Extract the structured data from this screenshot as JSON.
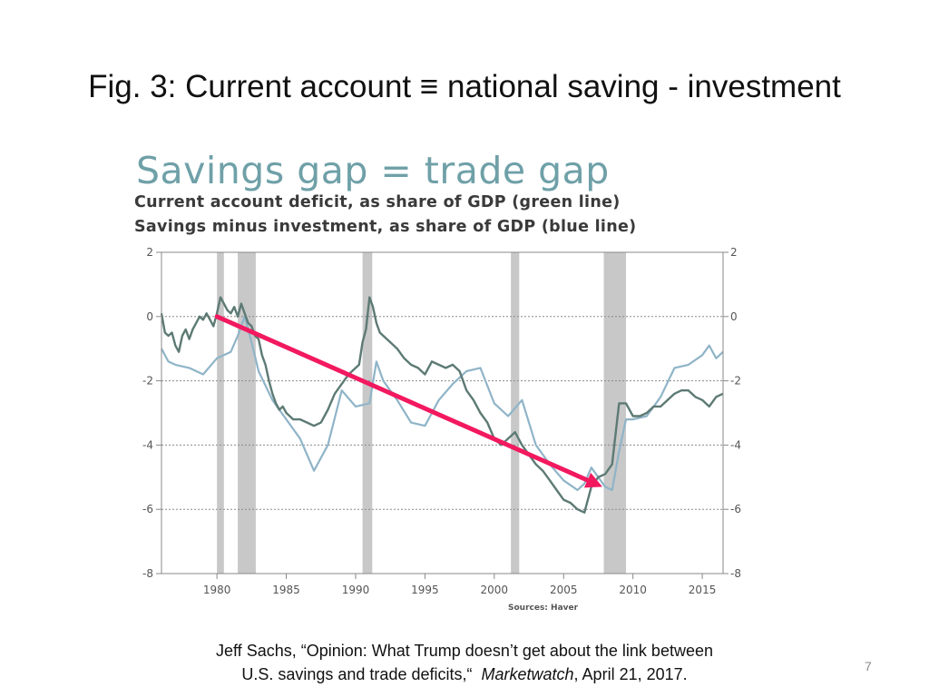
{
  "slide": {
    "title": "Fig. 3: Current account ≡ national saving - investment",
    "page_number": "7",
    "citation_line1": "Jeff Sachs, “Opinion: What Trump doesn’t get about the link between",
    "citation_line2_pre": "U.S. savings and trade deficits,“ ",
    "citation_source": "Marketwatch",
    "citation_line2_post": ", April 21, 2017."
  },
  "chart_data": {
    "type": "line",
    "title": "Savings gap = trade gap",
    "subtitle_lines": [
      "Current account deficit, as share of GDP (green line)",
      "Savings minus investment, as share of GDP (blue line)"
    ],
    "source": "Sources: Haver",
    "xlim": [
      1976,
      2016.5
    ],
    "ylim": [
      -8,
      2
    ],
    "x_ticks": [
      1980,
      1985,
      1990,
      1995,
      2000,
      2005,
      2010,
      2015
    ],
    "y_ticks": [
      2,
      0,
      -2,
      -4,
      -6,
      -8
    ],
    "grid": true,
    "recessions": [
      [
        1980.0,
        1980.5
      ],
      [
        1981.5,
        1982.8
      ],
      [
        1990.5,
        1991.2
      ],
      [
        2001.2,
        2001.8
      ],
      [
        2007.9,
        2009.5
      ]
    ],
    "series": [
      {
        "color": "#5d7a74",
        "points": [
          [
            1976,
            0.1
          ],
          [
            1976.25,
            -0.5
          ],
          [
            1976.5,
            -0.6
          ],
          [
            1976.75,
            -0.5
          ],
          [
            1977,
            -0.9
          ],
          [
            1977.25,
            -1.1
          ],
          [
            1977.5,
            -0.6
          ],
          [
            1977.75,
            -0.4
          ],
          [
            1978,
            -0.7
          ],
          [
            1978.25,
            -0.4
          ],
          [
            1978.5,
            -0.2
          ],
          [
            1978.75,
            0.0
          ],
          [
            1979,
            -0.1
          ],
          [
            1979.25,
            0.1
          ],
          [
            1979.5,
            -0.1
          ],
          [
            1979.75,
            -0.3
          ],
          [
            1980,
            0.1
          ],
          [
            1980.25,
            0.6
          ],
          [
            1980.5,
            0.4
          ],
          [
            1980.75,
            0.2
          ],
          [
            1981,
            0.1
          ],
          [
            1981.25,
            0.3
          ],
          [
            1981.5,
            0.0
          ],
          [
            1981.75,
            0.4
          ],
          [
            1982,
            0.1
          ],
          [
            1982.25,
            -0.2
          ],
          [
            1982.5,
            -0.3
          ],
          [
            1982.75,
            -0.6
          ],
          [
            1983,
            -0.7
          ],
          [
            1983.25,
            -1.2
          ],
          [
            1983.5,
            -1.5
          ],
          [
            1983.75,
            -2.0
          ],
          [
            1984,
            -2.4
          ],
          [
            1984.25,
            -2.7
          ],
          [
            1984.5,
            -2.9
          ],
          [
            1984.75,
            -2.8
          ],
          [
            1985,
            -3.0
          ],
          [
            1985.5,
            -3.2
          ],
          [
            1986,
            -3.2
          ],
          [
            1986.5,
            -3.3
          ],
          [
            1987,
            -3.4
          ],
          [
            1987.5,
            -3.3
          ],
          [
            1988,
            -2.9
          ],
          [
            1988.5,
            -2.4
          ],
          [
            1989,
            -2.1
          ],
          [
            1989.5,
            -1.8
          ],
          [
            1990,
            -1.6
          ],
          [
            1990.25,
            -1.5
          ],
          [
            1990.5,
            -0.8
          ],
          [
            1990.75,
            -0.4
          ],
          [
            1991,
            0.6
          ],
          [
            1991.25,
            0.3
          ],
          [
            1991.5,
            -0.2
          ],
          [
            1991.75,
            -0.5
          ],
          [
            1992,
            -0.6
          ],
          [
            1992.5,
            -0.8
          ],
          [
            1993,
            -1.0
          ],
          [
            1993.5,
            -1.3
          ],
          [
            1994,
            -1.5
          ],
          [
            1994.5,
            -1.6
          ],
          [
            1995,
            -1.8
          ],
          [
            1995.5,
            -1.4
          ],
          [
            1996,
            -1.5
          ],
          [
            1996.5,
            -1.6
          ],
          [
            1997,
            -1.5
          ],
          [
            1997.5,
            -1.7
          ],
          [
            1998,
            -2.3
          ],
          [
            1998.5,
            -2.6
          ],
          [
            1999,
            -3.0
          ],
          [
            1999.5,
            -3.3
          ],
          [
            2000,
            -3.8
          ],
          [
            2000.5,
            -4.0
          ],
          [
            2001,
            -3.8
          ],
          [
            2001.5,
            -3.6
          ],
          [
            2002,
            -4.0
          ],
          [
            2002.5,
            -4.3
          ],
          [
            2003,
            -4.6
          ],
          [
            2003.5,
            -4.8
          ],
          [
            2004,
            -5.1
          ],
          [
            2004.5,
            -5.4
          ],
          [
            2005,
            -5.7
          ],
          [
            2005.5,
            -5.8
          ],
          [
            2006,
            -6.0
          ],
          [
            2006.5,
            -6.1
          ],
          [
            2007,
            -5.3
          ],
          [
            2007.5,
            -5.0
          ],
          [
            2008,
            -4.9
          ],
          [
            2008.5,
            -4.6
          ],
          [
            2009,
            -2.7
          ],
          [
            2009.5,
            -2.7
          ],
          [
            2010,
            -3.1
          ],
          [
            2010.5,
            -3.1
          ],
          [
            2011,
            -3.0
          ],
          [
            2011.5,
            -2.8
          ],
          [
            2012,
            -2.8
          ],
          [
            2012.5,
            -2.6
          ],
          [
            2013,
            -2.4
          ],
          [
            2013.5,
            -2.3
          ],
          [
            2014,
            -2.3
          ],
          [
            2014.5,
            -2.5
          ],
          [
            2015,
            -2.6
          ],
          [
            2015.5,
            -2.8
          ],
          [
            2016,
            -2.5
          ],
          [
            2016.5,
            -2.4
          ]
        ]
      },
      {
        "color": "#8fb4c8",
        "points": [
          [
            1976,
            -1.0
          ],
          [
            1976.5,
            -1.4
          ],
          [
            1977,
            -1.5
          ],
          [
            1978,
            -1.6
          ],
          [
            1979,
            -1.8
          ],
          [
            1980,
            -1.3
          ],
          [
            1981,
            -1.1
          ],
          [
            1981.5,
            -0.6
          ],
          [
            1982,
            0.0
          ],
          [
            1982.5,
            -0.8
          ],
          [
            1983,
            -1.7
          ],
          [
            1984,
            -2.6
          ],
          [
            1985,
            -3.2
          ],
          [
            1986,
            -3.8
          ],
          [
            1987,
            -4.8
          ],
          [
            1988,
            -4.0
          ],
          [
            1989,
            -2.3
          ],
          [
            1990,
            -2.8
          ],
          [
            1991,
            -2.7
          ],
          [
            1991.5,
            -1.4
          ],
          [
            1992,
            -2.0
          ],
          [
            1993,
            -2.6
          ],
          [
            1994,
            -3.3
          ],
          [
            1995,
            -3.4
          ],
          [
            1996,
            -2.6
          ],
          [
            1997,
            -2.1
          ],
          [
            1998,
            -1.7
          ],
          [
            1999,
            -1.6
          ],
          [
            2000,
            -2.7
          ],
          [
            2001,
            -3.1
          ],
          [
            2002,
            -2.6
          ],
          [
            2003,
            -4.0
          ],
          [
            2004,
            -4.6
          ],
          [
            2005,
            -5.1
          ],
          [
            2006,
            -5.4
          ],
          [
            2006.5,
            -5.2
          ],
          [
            2007,
            -4.7
          ],
          [
            2008,
            -5.3
          ],
          [
            2008.5,
            -5.4
          ],
          [
            2009,
            -4.2
          ],
          [
            2009.5,
            -3.2
          ],
          [
            2010,
            -3.2
          ],
          [
            2011,
            -3.1
          ],
          [
            2012,
            -2.5
          ],
          [
            2013,
            -1.6
          ],
          [
            2014,
            -1.5
          ],
          [
            2015,
            -1.2
          ],
          [
            2015.5,
            -0.9
          ],
          [
            2016,
            -1.3
          ],
          [
            2016.5,
            -1.1
          ]
        ]
      }
    ],
    "annotation_arrow": {
      "color": "#f2195f",
      "from": [
        1980,
        0
      ],
      "to": [
        2007.8,
        -5.3
      ]
    }
  }
}
